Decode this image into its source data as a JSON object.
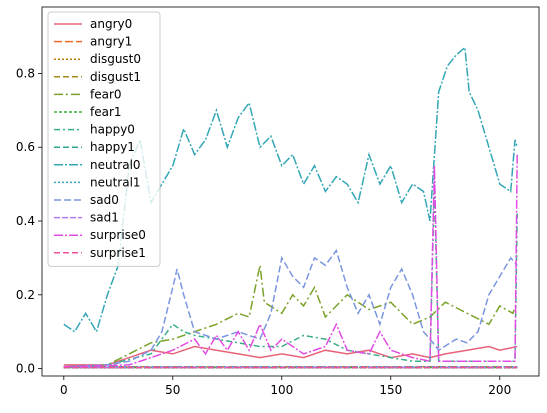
{
  "chart_data": {
    "type": "line",
    "title": "",
    "xlabel": "",
    "ylabel": "",
    "xlim": [
      -10,
      218
    ],
    "ylim": [
      -0.02,
      0.98
    ],
    "x_ticks": [
      0,
      50,
      100,
      150,
      200
    ],
    "y_ticks": [
      0.0,
      0.2,
      0.4,
      0.6,
      0.8
    ],
    "x_tick_labels": [
      "0",
      "50",
      "100",
      "150",
      "200"
    ],
    "y_tick_labels": [
      "0.0",
      "0.2",
      "0.4",
      "0.6",
      "0.8"
    ],
    "grid": false,
    "legend_position": "upper-left",
    "series": [
      {
        "name": "angry0",
        "color": "#e8637a",
        "dash": "solid",
        "points": [
          [
            0,
            0.01
          ],
          [
            20,
            0.01
          ],
          [
            30,
            0.03
          ],
          [
            40,
            0.05
          ],
          [
            50,
            0.04
          ],
          [
            60,
            0.06
          ],
          [
            70,
            0.05
          ],
          [
            80,
            0.04
          ],
          [
            90,
            0.03
          ],
          [
            100,
            0.04
          ],
          [
            110,
            0.03
          ],
          [
            120,
            0.05
          ],
          [
            130,
            0.04
          ],
          [
            140,
            0.05
          ],
          [
            150,
            0.03
          ],
          [
            160,
            0.04
          ],
          [
            168,
            0.03
          ],
          [
            175,
            0.04
          ],
          [
            185,
            0.05
          ],
          [
            195,
            0.06
          ],
          [
            200,
            0.05
          ],
          [
            208,
            0.06
          ]
        ]
      },
      {
        "name": "angry1",
        "color": "#f06a24",
        "dash": "8,3",
        "points": [
          [
            0,
            0.005
          ],
          [
            208,
            0.005
          ]
        ]
      },
      {
        "name": "disgust0",
        "color": "#c47a0f",
        "dash": "2,2",
        "points": [
          [
            0,
            0.002
          ],
          [
            208,
            0.002
          ]
        ]
      },
      {
        "name": "disgust1",
        "color": "#a08d19",
        "dash": "6,3",
        "points": [
          [
            0,
            0.003
          ],
          [
            208,
            0.003
          ]
        ]
      },
      {
        "name": "fear0",
        "color": "#7aa22a",
        "dash": "9,3,2,3",
        "points": [
          [
            0,
            0.005
          ],
          [
            20,
            0.01
          ],
          [
            30,
            0.04
          ],
          [
            40,
            0.07
          ],
          [
            50,
            0.08
          ],
          [
            60,
            0.1
          ],
          [
            70,
            0.12
          ],
          [
            80,
            0.15
          ],
          [
            85,
            0.14
          ],
          [
            90,
            0.28
          ],
          [
            92,
            0.18
          ],
          [
            100,
            0.15
          ],
          [
            105,
            0.2
          ],
          [
            110,
            0.17
          ],
          [
            115,
            0.22
          ],
          [
            120,
            0.14
          ],
          [
            130,
            0.2
          ],
          [
            140,
            0.16
          ],
          [
            150,
            0.18
          ],
          [
            160,
            0.12
          ],
          [
            168,
            0.14
          ],
          [
            175,
            0.18
          ],
          [
            185,
            0.15
          ],
          [
            195,
            0.12
          ],
          [
            200,
            0.17
          ],
          [
            206,
            0.15
          ],
          [
            208,
            0.18
          ]
        ]
      },
      {
        "name": "fear1",
        "color": "#33b23b",
        "dash": "3,2",
        "points": [
          [
            0,
            0.003
          ],
          [
            208,
            0.003
          ]
        ]
      },
      {
        "name": "happy0",
        "color": "#36ad85",
        "dash": "6,3,2,3",
        "points": [
          [
            0,
            0.005
          ],
          [
            20,
            0.01
          ],
          [
            40,
            0.04
          ],
          [
            50,
            0.12
          ],
          [
            55,
            0.1
          ],
          [
            60,
            0.09
          ],
          [
            70,
            0.08
          ],
          [
            80,
            0.07
          ],
          [
            90,
            0.06
          ],
          [
            100,
            0.06
          ],
          [
            110,
            0.09
          ],
          [
            120,
            0.08
          ],
          [
            130,
            0.05
          ],
          [
            140,
            0.04
          ],
          [
            150,
            0.03
          ],
          [
            160,
            0.02
          ],
          [
            168,
            0.02
          ],
          [
            170,
            0.5
          ],
          [
            172,
            0.02
          ],
          [
            180,
            0.02
          ],
          [
            190,
            0.02
          ],
          [
            200,
            0.02
          ],
          [
            207,
            0.02
          ],
          [
            208,
            0.42
          ]
        ]
      },
      {
        "name": "happy1",
        "color": "#2fa392",
        "dash": "6,3",
        "points": [
          [
            0,
            0.003
          ],
          [
            208,
            0.003
          ]
        ]
      },
      {
        "name": "neutral0",
        "color": "#33a7b5",
        "dash": "9,2,2,2",
        "points": [
          [
            0,
            0.12
          ],
          [
            5,
            0.1
          ],
          [
            10,
            0.15
          ],
          [
            15,
            0.1
          ],
          [
            20,
            0.2
          ],
          [
            25,
            0.28
          ],
          [
            30,
            0.55
          ],
          [
            35,
            0.62
          ],
          [
            40,
            0.45
          ],
          [
            45,
            0.5
          ],
          [
            50,
            0.55
          ],
          [
            55,
            0.65
          ],
          [
            60,
            0.58
          ],
          [
            65,
            0.62
          ],
          [
            70,
            0.7
          ],
          [
            75,
            0.6
          ],
          [
            80,
            0.68
          ],
          [
            85,
            0.72
          ],
          [
            90,
            0.6
          ],
          [
            95,
            0.63
          ],
          [
            100,
            0.55
          ],
          [
            105,
            0.58
          ],
          [
            110,
            0.5
          ],
          [
            115,
            0.55
          ],
          [
            120,
            0.48
          ],
          [
            125,
            0.52
          ],
          [
            130,
            0.5
          ],
          [
            135,
            0.45
          ],
          [
            140,
            0.58
          ],
          [
            145,
            0.5
          ],
          [
            150,
            0.55
          ],
          [
            155,
            0.45
          ],
          [
            160,
            0.5
          ],
          [
            165,
            0.48
          ],
          [
            168,
            0.4
          ],
          [
            172,
            0.75
          ],
          [
            176,
            0.82
          ],
          [
            180,
            0.85
          ],
          [
            184,
            0.87
          ],
          [
            186,
            0.75
          ],
          [
            190,
            0.7
          ],
          [
            195,
            0.6
          ],
          [
            200,
            0.5
          ],
          [
            205,
            0.48
          ],
          [
            207,
            0.62
          ],
          [
            208,
            0.6
          ]
        ]
      },
      {
        "name": "neutral1",
        "color": "#32a4c1",
        "dash": "2,2",
        "points": [
          [
            0,
            0.005
          ],
          [
            208,
            0.005
          ]
        ]
      },
      {
        "name": "sad0",
        "color": "#7b96e0",
        "dash": "7,3",
        "points": [
          [
            0,
            0.005
          ],
          [
            20,
            0.01
          ],
          [
            30,
            0.02
          ],
          [
            40,
            0.05
          ],
          [
            45,
            0.1
          ],
          [
            50,
            0.22
          ],
          [
            52,
            0.27
          ],
          [
            55,
            0.2
          ],
          [
            60,
            0.1
          ],
          [
            70,
            0.08
          ],
          [
            80,
            0.1
          ],
          [
            90,
            0.08
          ],
          [
            95,
            0.15
          ],
          [
            100,
            0.3
          ],
          [
            105,
            0.25
          ],
          [
            110,
            0.22
          ],
          [
            115,
            0.3
          ],
          [
            120,
            0.28
          ],
          [
            125,
            0.32
          ],
          [
            130,
            0.22
          ],
          [
            135,
            0.15
          ],
          [
            140,
            0.2
          ],
          [
            145,
            0.12
          ],
          [
            150,
            0.22
          ],
          [
            155,
            0.27
          ],
          [
            160,
            0.2
          ],
          [
            165,
            0.1
          ],
          [
            168,
            0.08
          ],
          [
            172,
            0.05
          ],
          [
            180,
            0.08
          ],
          [
            185,
            0.07
          ],
          [
            190,
            0.1
          ],
          [
            195,
            0.2
          ],
          [
            200,
            0.25
          ],
          [
            205,
            0.3
          ],
          [
            208,
            0.28
          ]
        ]
      },
      {
        "name": "sad1",
        "color": "#b07ae8",
        "dash": "6,2",
        "points": [
          [
            0,
            0.003
          ],
          [
            208,
            0.003
          ]
        ]
      },
      {
        "name": "surprise0",
        "color": "#e24be3",
        "dash": "9,2,2,2",
        "points": [
          [
            0,
            0.005
          ],
          [
            30,
            0.01
          ],
          [
            40,
            0.03
          ],
          [
            50,
            0.05
          ],
          [
            60,
            0.08
          ],
          [
            65,
            0.04
          ],
          [
            70,
            0.09
          ],
          [
            75,
            0.05
          ],
          [
            80,
            0.1
          ],
          [
            85,
            0.05
          ],
          [
            90,
            0.12
          ],
          [
            95,
            0.05
          ],
          [
            100,
            0.08
          ],
          [
            110,
            0.04
          ],
          [
            120,
            0.06
          ],
          [
            125,
            0.12
          ],
          [
            130,
            0.05
          ],
          [
            140,
            0.04
          ],
          [
            145,
            0.1
          ],
          [
            150,
            0.05
          ],
          [
            160,
            0.03
          ],
          [
            168,
            0.02
          ],
          [
            170,
            0.55
          ],
          [
            172,
            0.02
          ],
          [
            180,
            0.02
          ],
          [
            190,
            0.02
          ],
          [
            200,
            0.02
          ],
          [
            207,
            0.02
          ],
          [
            208,
            0.58
          ]
        ]
      },
      {
        "name": "surprise1",
        "color": "#f04f9e",
        "dash": "6,3",
        "points": [
          [
            0,
            0.003
          ],
          [
            208,
            0.003
          ]
        ]
      }
    ]
  }
}
